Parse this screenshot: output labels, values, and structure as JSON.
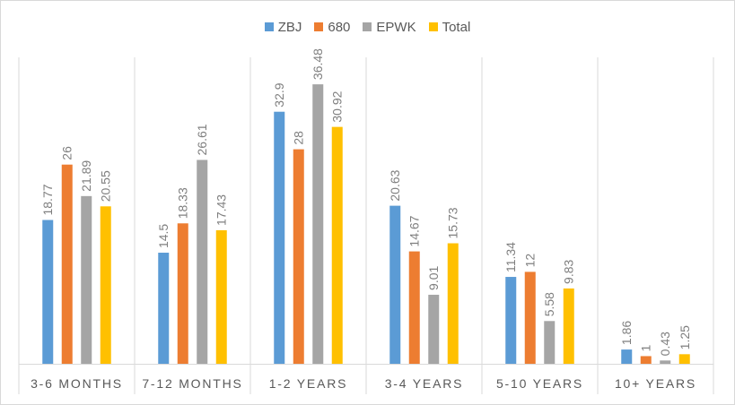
{
  "chart_data": {
    "type": "bar",
    "categories": [
      "3-6 MONTHS",
      "7-12 MONTHS",
      "1-2 YEARS",
      "3-4 YEARS",
      "5-10 YEARS",
      "10+ YEARS"
    ],
    "series": [
      {
        "name": "ZBJ",
        "color": "#5b9bd5",
        "values": [
          18.77,
          14.5,
          32.9,
          20.63,
          11.34,
          1.86
        ],
        "labels": [
          "18.77",
          "14.5",
          "32.9",
          "20.63",
          "11.34",
          "1.86"
        ]
      },
      {
        "name": "680",
        "color": "#ed7d31",
        "values": [
          26,
          18.33,
          28,
          14.67,
          12,
          1
        ],
        "labels": [
          "26",
          "18.33",
          "28",
          "14.67",
          "12",
          "1"
        ]
      },
      {
        "name": "EPWK",
        "color": "#a5a5a5",
        "values": [
          21.89,
          26.61,
          36.48,
          9.01,
          5.58,
          0.43
        ],
        "labels": [
          "21.89",
          "26.61",
          "36.48",
          "9.01",
          "5.58",
          "0.43"
        ]
      },
      {
        "name": "Total",
        "color": "#ffc000",
        "values": [
          20.55,
          17.43,
          30.92,
          15.73,
          9.83,
          1.25
        ],
        "labels": [
          "20.55",
          "17.43",
          "30.92",
          "15.73",
          "9.83",
          "1.25"
        ]
      }
    ],
    "legend_position": "top",
    "ylim": [
      0,
      40
    ],
    "grid": false
  }
}
